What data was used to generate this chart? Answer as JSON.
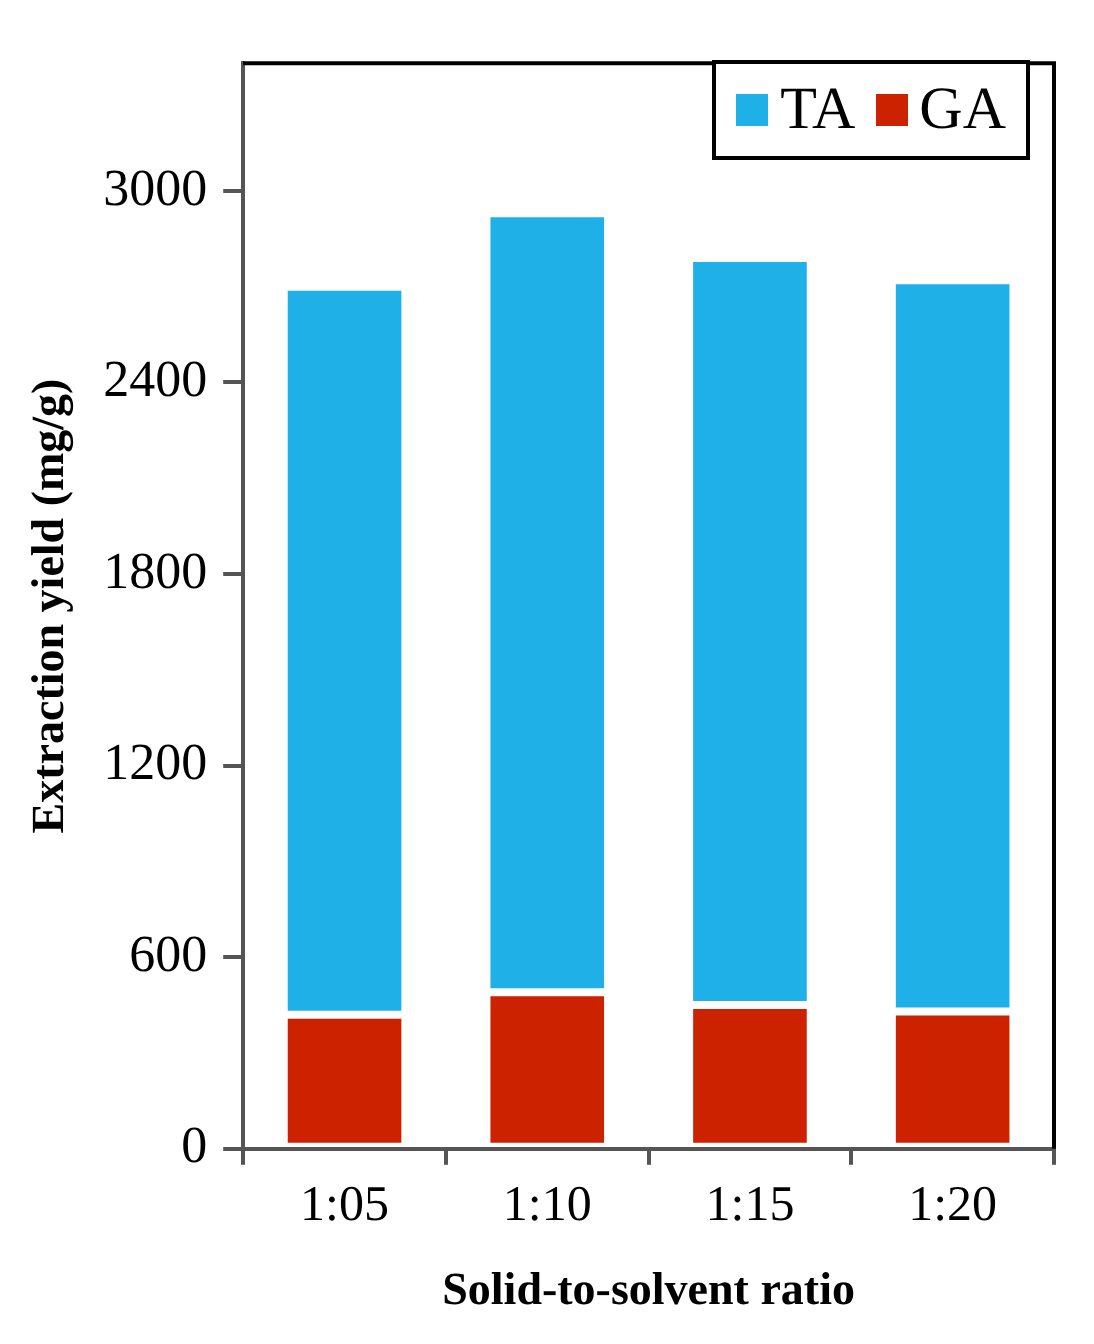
{
  "chart_data": {
    "type": "bar",
    "stacked": true,
    "xlabel": "Solid-to-solvent ratio",
    "ylabel": "Extraction yield (mg/g)",
    "categories": [
      "1:05",
      "1:10",
      "1:15",
      "1:20"
    ],
    "series": [
      {
        "name": "GA",
        "color": "#cc2200",
        "values": [
          420,
          490,
          450,
          430
        ]
      },
      {
        "name": "TA",
        "color": "#1fb0e8",
        "values": [
          2280,
          2440,
          2340,
          2290
        ]
      }
    ],
    "ylim": [
      0,
      3400
    ],
    "yticks": [
      0,
      600,
      1200,
      1800,
      2400,
      3000
    ],
    "grid": false,
    "legend": "top right"
  }
}
